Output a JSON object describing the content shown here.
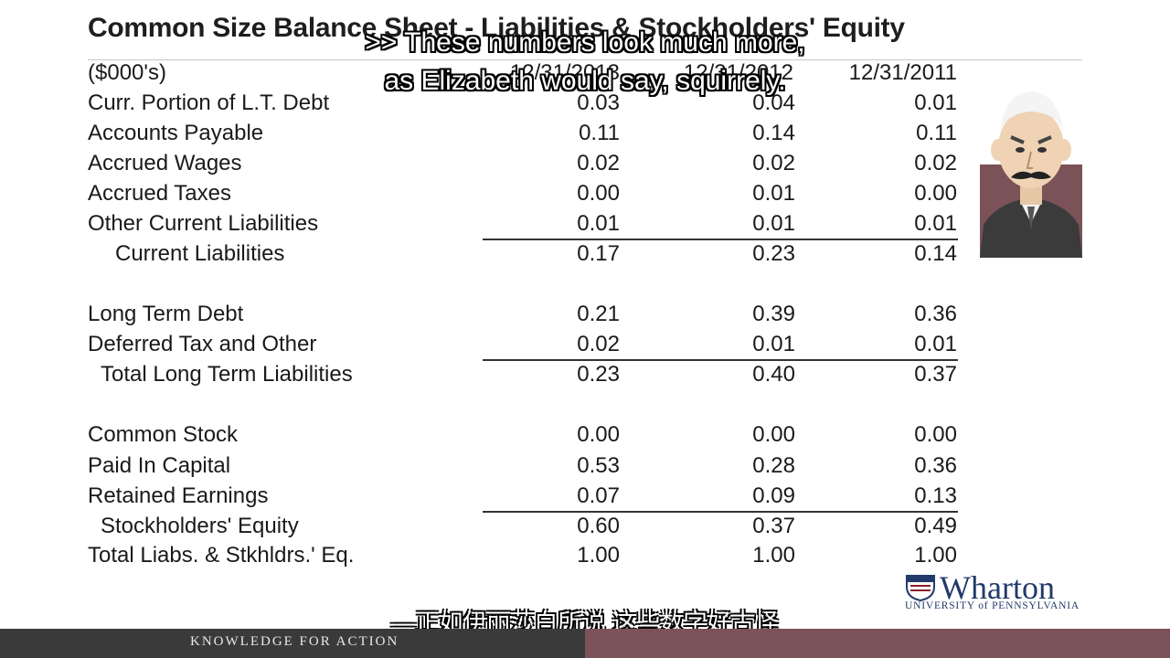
{
  "slide": {
    "title": "Common Size Balance Sheet - Liabilities & Stockholders' Equity",
    "units": "($000's)",
    "columns": [
      "12/31/2013",
      "12/31/2012",
      "12/31/2011"
    ]
  },
  "rows": [
    {
      "label": "Curr. Portion of  L.T. Debt",
      "values": [
        "0.03",
        "0.04",
        "0.01"
      ]
    },
    {
      "label": "Accounts Payable",
      "values": [
        "0.11",
        "0.14",
        "0.11"
      ]
    },
    {
      "label": "Accrued Wages",
      "values": [
        "0.02",
        "0.02",
        "0.02"
      ]
    },
    {
      "label": "Accrued Taxes",
      "values": [
        "0.00",
        "0.01",
        "0.00"
      ]
    },
    {
      "label": "Other Current Liabilities",
      "values": [
        "0.01",
        "0.01",
        "0.01"
      ]
    },
    {
      "label": "Current Liabilities",
      "values": [
        "0.17",
        "0.23",
        "0.14"
      ]
    },
    {
      "label": "Long Term Debt",
      "values": [
        "0.21",
        "0.39",
        "0.36"
      ]
    },
    {
      "label": "Deferred Tax and Other",
      "values": [
        "0.02",
        "0.01",
        "0.01"
      ]
    },
    {
      "label": "Total Long Term Liabilities",
      "values": [
        "0.23",
        "0.40",
        "0.37"
      ]
    },
    {
      "label": "Common Stock",
      "values": [
        "0.00",
        "0.00",
        "0.00"
      ]
    },
    {
      "label": "Paid In Capital",
      "values": [
        "0.53",
        "0.28",
        "0.36"
      ]
    },
    {
      "label": "Retained Earnings",
      "values": [
        "0.07",
        "0.09",
        "0.13"
      ]
    },
    {
      "label": "Stockholders' Equity",
      "values": [
        "0.60",
        "0.37",
        "0.49"
      ]
    },
    {
      "label": "Total Liabs. & Stkhldrs.' Eq.",
      "values": [
        "1.00",
        "1.00",
        "1.00"
      ]
    }
  ],
  "subtitles": {
    "en_line1": ">> These numbers look much more,",
    "en_line2": "as Elizabeth would say, squirrely.",
    "zh": "—正如伊丽莎白所说 这些数字好古怪"
  },
  "footer": {
    "tagline": "KNOWLEDGE FOR ACTION",
    "logo_name": "Wharton",
    "logo_sub": "UNIVERSITY of PENNSYLVANIA"
  },
  "colors": {
    "footer_dark": "#3a3a3a",
    "footer_maroon": "#7a5257",
    "logo_blue": "#233a6a"
  }
}
